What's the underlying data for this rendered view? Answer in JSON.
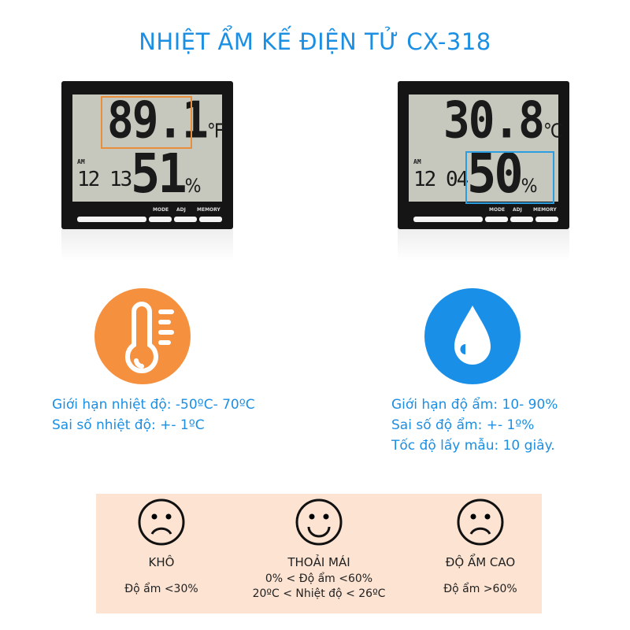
{
  "title": "NHIỆT ẨM KẾ ĐIỆN TỬ CX-318",
  "devices": [
    {
      "temp": "89.1",
      "temp_unit": "°F",
      "humidity": "51",
      "hum_unit": "%",
      "time": "12 13",
      "am": "AM",
      "highlight": "temperature",
      "highlight_color": "#e98e3a"
    },
    {
      "temp": "30.8",
      "temp_unit": "°C",
      "humidity": "50",
      "hum_unit": "%",
      "time": "12 04",
      "am": "AM",
      "highlight": "humidity",
      "highlight_color": "#2a9ee0"
    }
  ],
  "buttons": [
    "MODE",
    "ADJ",
    "MEMORY"
  ],
  "icons": {
    "thermometer": "thermometer-icon",
    "drop": "water-drop-icon",
    "orange": "#f5913e",
    "blue": "#1a8fe8"
  },
  "temperature_info": [
    "Giới hạn nhiệt độ: -50ºC- 70ºC",
    "Sai số nhiệt độ: +- 1ºC"
  ],
  "humidity_info": [
    "Giới hạn độ ẩm: 10- 90%",
    "Sai số độ ẩm: +- 1º%",
    "Tốc độ lấy mẫu: 10 giây."
  ],
  "comfort": [
    {
      "face": "sad",
      "label": "KHÔ",
      "lines": [
        "Độ ẩm <30%"
      ]
    },
    {
      "face": "happy",
      "label": "THOẢI MÁI",
      "lines": [
        "0% < Độ ẩm <60%",
        "20ºC < Nhiệt độ < 26ºC"
      ]
    },
    {
      "face": "sad",
      "label": "ĐỘ ẨM CAO",
      "lines": [
        "Độ ẩm >60%"
      ]
    }
  ]
}
